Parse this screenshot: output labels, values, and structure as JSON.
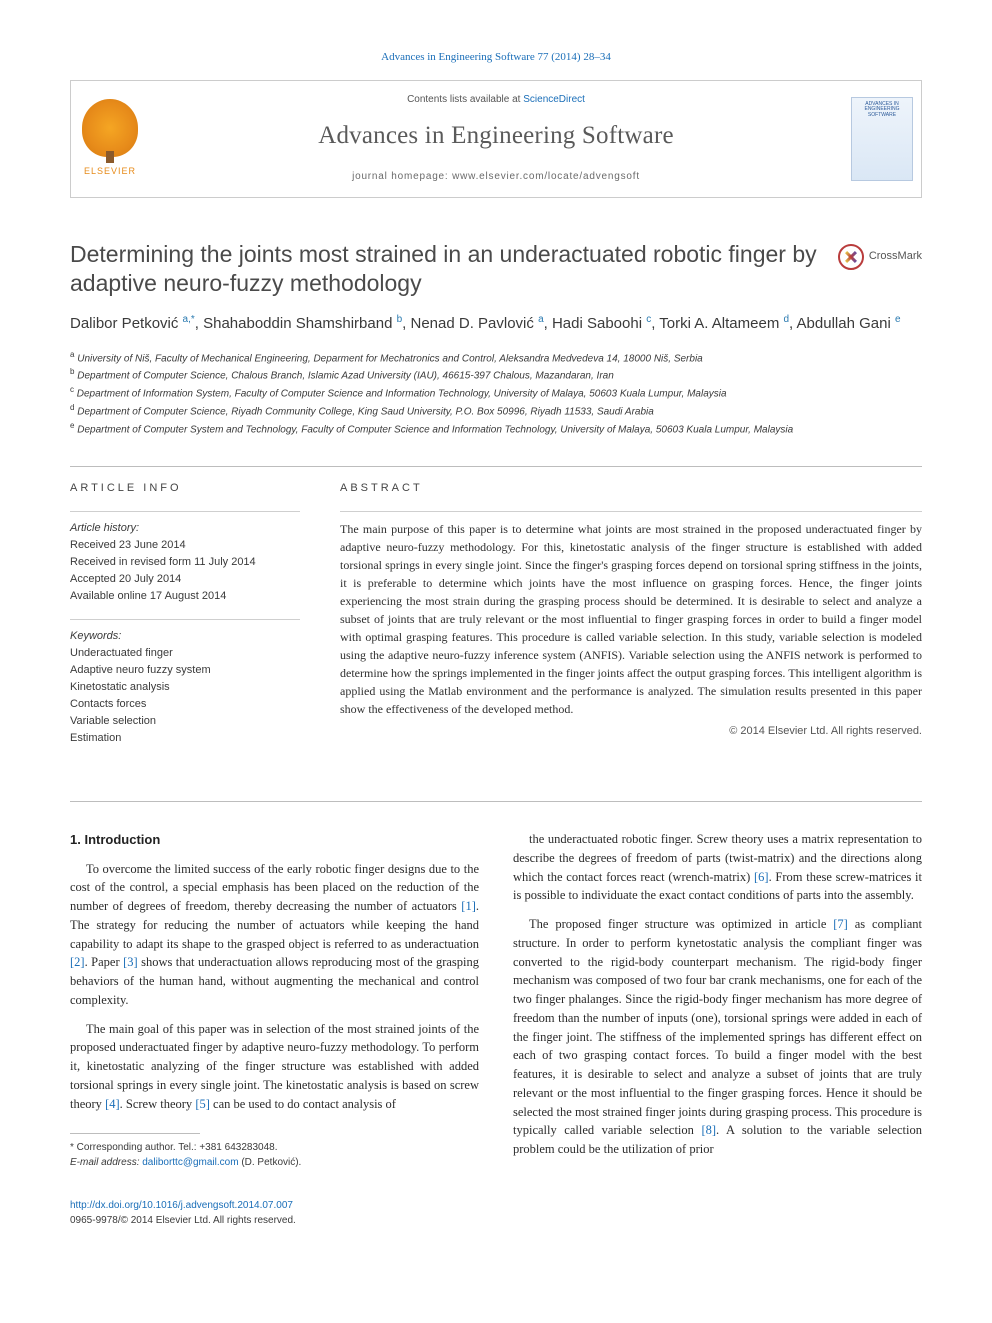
{
  "top_citation": "Advances in Engineering Software 77 (2014) 28–34",
  "header": {
    "contents_prefix": "Contents lists available at ",
    "contents_link": "ScienceDirect",
    "journal_title": "Advances in Engineering Software",
    "homepage_label": "journal homepage: ",
    "homepage_url": "www.elsevier.com/locate/advengsoft",
    "elsevier_label": "ELSEVIER",
    "cover_line1": "ADVANCES IN",
    "cover_line2": "ENGINEERING",
    "cover_line3": "SOFTWARE"
  },
  "crossmark_label": "CrossMark",
  "article_title": "Determining the joints most strained in an underactuated robotic finger by adaptive neuro-fuzzy methodology",
  "authors_html": "Dalibor Petković <sup>a,*</sup>, Shahaboddin Shamshirband <sup>b</sup>, Nenad D. Pavlović <sup>a</sup>, Hadi Saboohi <sup>c</sup>, Torki A. Altameem <sup>d</sup>, Abdullah Gani <sup>e</sup>",
  "affiliations": [
    "University of Niš, Faculty of Mechanical Engineering, Deparment for Mechatronics and Control, Aleksandra Medvedeva 14, 18000 Niš, Serbia",
    "Department of Computer Science, Chalous Branch, Islamic Azad University (IAU), 46615-397 Chalous, Mazandaran, Iran",
    "Department of Information System, Faculty of Computer Science and Information Technology, University of Malaya, 50603 Kuala Lumpur, Malaysia",
    "Department of Computer Science, Riyadh Community College, King Saud University, P.O. Box 50996, Riyadh 11533, Saudi Arabia",
    "Department of Computer System and Technology, Faculty of Computer Science and Information Technology, University of Malaya, 50603 Kuala Lumpur, Malaysia"
  ],
  "aff_sup": [
    "a",
    "b",
    "c",
    "d",
    "e"
  ],
  "info_head": "ARTICLE INFO",
  "abs_head": "ABSTRACT",
  "history_label": "Article history:",
  "history": [
    "Received 23 June 2014",
    "Received in revised form 11 July 2014",
    "Accepted 20 July 2014",
    "Available online 17 August 2014"
  ],
  "keywords_label": "Keywords:",
  "keywords": [
    "Underactuated finger",
    "Adaptive neuro fuzzy system",
    "Kinetostatic analysis",
    "Contacts forces",
    "Variable selection",
    "Estimation"
  ],
  "abstract": "The main purpose of this paper is to determine what joints are most strained in the proposed underactuated finger by adaptive neuro-fuzzy methodology. For this, kinetostatic analysis of the finger structure is established with added torsional springs in every single joint. Since the finger's grasping forces depend on torsional spring stiffness in the joints, it is preferable to determine which joints have the most influence on grasping forces. Hence, the finger joints experiencing the most strain during the grasping process should be determined. It is desirable to select and analyze a subset of joints that are truly relevant or the most influential to finger grasping forces in order to build a finger model with optimal grasping features. This procedure is called variable selection. In this study, variable selection is modeled using the adaptive neuro-fuzzy inference system (ANFIS). Variable selection using the ANFIS network is performed to determine how the springs implemented in the finger joints affect the output grasping forces. This intelligent algorithm is applied using the Matlab environment and the performance is analyzed. The simulation results presented in this paper show the effectiveness of the developed method.",
  "copyright": "© 2014 Elsevier Ltd. All rights reserved.",
  "section_head": "1. Introduction",
  "body": {
    "p1": "To overcome the limited success of the early robotic finger designs due to the cost of the control, a special emphasis has been placed on the reduction of the number of degrees of freedom, thereby decreasing the number of actuators [1]. The strategy for reducing the number of actuators while keeping the hand capability to adapt its shape to the grasped object is referred to as underactuation [2]. Paper [3] shows that underactuation allows reproducing most of the grasping behaviors of the human hand, without augmenting the mechanical and control complexity.",
    "p2": "The main goal of this paper was in selection of the most strained joints of the proposed underactuated finger by adaptive neuro-fuzzy methodology. To perform it, kinetostatic analyzing of the finger structure was established with added torsional springs in every single joint. The kinetostatic analysis is based on screw theory [4]. Screw theory [5] can be used to do contact analysis of",
    "p3": "the underactuated robotic finger. Screw theory uses a matrix representation to describe the degrees of freedom of parts (twist-matrix) and the directions along which the contact forces react (wrench-matrix) [6]. From these screw-matrices it is possible to individuate the exact contact conditions of parts into the assembly.",
    "p4": "The proposed finger structure was optimized in article [7] as compliant structure. In order to perform kynetostatic analysis the compliant finger was converted to the rigid-body counterpart mechanism. The rigid-body finger mechanism was composed of two four bar crank mechanisms, one for each of the two finger phalanges. Since the rigid-body finger mechanism has more degree of freedom than the number of inputs (one), torsional springs were added in each of the finger joint. The stiffness of the implemented springs has different effect on each of two grasping contact forces. To build a finger model with the best features, it is desirable to select and analyze a subset of joints that are truly relevant or the most influential to the finger grasping forces. Hence it should be selected the most strained finger joints during grasping process. This procedure is typically called variable selection [8]. A solution to the variable selection problem could be the utilization of prior"
  },
  "footnote": {
    "corresponding": "* Corresponding author. Tel.: +381 643283048.",
    "email_label": "E-mail address:",
    "email": "daliborttc@gmail.com",
    "email_person": "(D. Petković)."
  },
  "footer": {
    "doi": "http://dx.doi.org/10.1016/j.advengsoft.2014.07.007",
    "issn_line": "0965-9978/© 2014 Elsevier Ltd. All rights reserved."
  },
  "colors": {
    "link": "#1a6eb8",
    "text": "#333333",
    "rule": "#bdbdbd",
    "elsevier": "#e78b1a"
  }
}
